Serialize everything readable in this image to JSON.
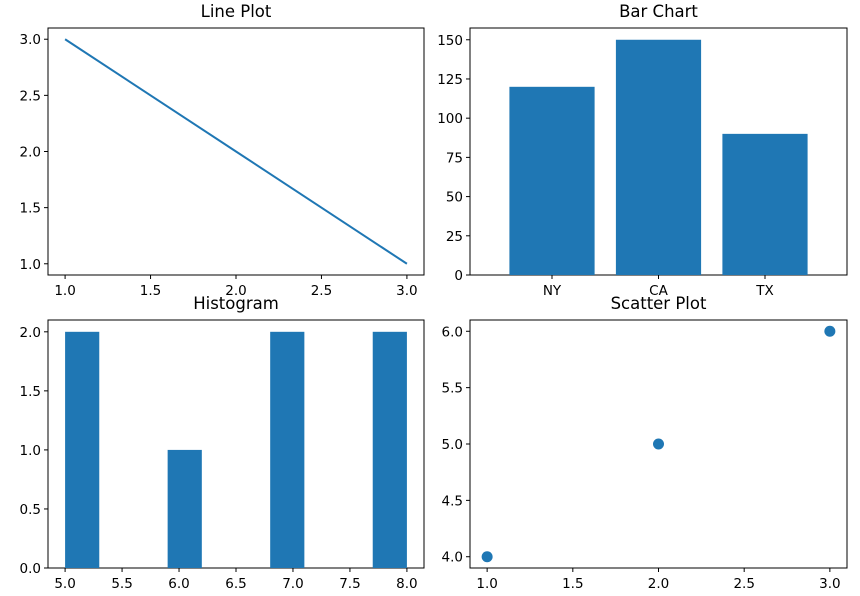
{
  "colors": {
    "series": "#1f77b4",
    "axis": "#000000",
    "background": "#ffffff"
  },
  "chart_data": [
    {
      "type": "line",
      "title": "Line Plot",
      "x": [
        1,
        2,
        3
      ],
      "y": [
        3,
        2,
        1
      ],
      "xticks": [
        "1.0",
        "1.5",
        "2.0",
        "2.5",
        "3.0"
      ],
      "yticks": [
        "1.0",
        "1.5",
        "2.0",
        "2.5",
        "3.0"
      ],
      "xlim": [
        0.9,
        3.1
      ],
      "ylim": [
        0.9,
        3.1
      ],
      "grid": false
    },
    {
      "type": "bar",
      "title": "Bar Chart",
      "categories": [
        "NY",
        "CA",
        "TX"
      ],
      "values": [
        120,
        150,
        90
      ],
      "yticks": [
        "0",
        "25",
        "50",
        "75",
        "100",
        "125",
        "150"
      ],
      "ylim": [
        0,
        157.5
      ],
      "grid": false
    },
    {
      "type": "bar",
      "title": "Histogram",
      "bins": [
        {
          "start": 5.0,
          "end": 5.3,
          "count": 2
        },
        {
          "start": 5.3,
          "end": 5.6,
          "count": 0
        },
        {
          "start": 5.6,
          "end": 5.9,
          "count": 0
        },
        {
          "start": 5.9,
          "end": 6.2,
          "count": 1
        },
        {
          "start": 6.2,
          "end": 6.5,
          "count": 0
        },
        {
          "start": 6.5,
          "end": 6.8,
          "count": 0
        },
        {
          "start": 6.8,
          "end": 7.1,
          "count": 2
        },
        {
          "start": 7.1,
          "end": 7.4,
          "count": 0
        },
        {
          "start": 7.4,
          "end": 7.7,
          "count": 0
        },
        {
          "start": 7.7,
          "end": 8.0,
          "count": 2
        }
      ],
      "xticks": [
        "5.0",
        "5.5",
        "6.0",
        "6.5",
        "7.0",
        "7.5",
        "8.0"
      ],
      "yticks": [
        "0.0",
        "0.5",
        "1.0",
        "1.5",
        "2.0"
      ],
      "xlim": [
        4.85,
        8.15
      ],
      "ylim": [
        0,
        2.1
      ],
      "grid": false
    },
    {
      "type": "scatter",
      "title": "Scatter Plot",
      "x": [
        1,
        2,
        3
      ],
      "y": [
        4,
        5,
        6
      ],
      "xticks": [
        "1.0",
        "1.5",
        "2.0",
        "2.5",
        "3.0"
      ],
      "yticks": [
        "4.0",
        "4.5",
        "5.0",
        "5.5",
        "6.0"
      ],
      "xlim": [
        0.9,
        3.1
      ],
      "ylim": [
        3.9,
        6.1
      ],
      "grid": false
    }
  ]
}
